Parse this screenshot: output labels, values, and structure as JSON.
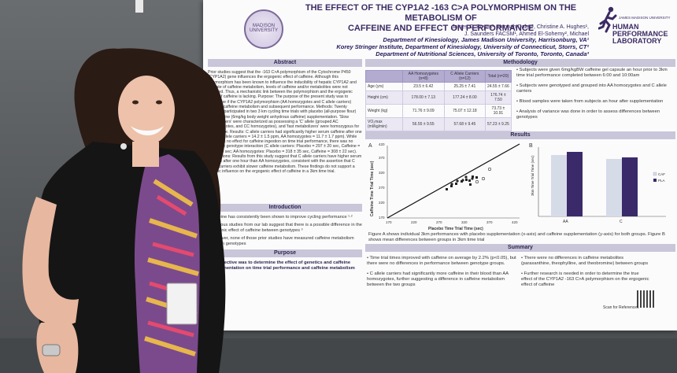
{
  "poster": {
    "title_line1": "THE EFFECT OF THE CYP1A2 -163 C>A POLYMORPHISM ON THE METABOLISM OF",
    "title_line2": "CAFFEINE AND EFFECT ON PERFORMANCE",
    "authors_line1": "James C. Boyett¹, Hannah Daley¹, Christine A. Hughes¹,",
    "authors_line2": "J. Saunders FACSM¹, Ahmed El-Sohemy², Michael",
    "affil_1": "Department of Kinesiology, James Madison University, Harrisonburg, VA¹",
    "affil_2": "Korey Stringer Institute, Department of Kinesiology, University of Connecticut, Storrs, CT²",
    "affil_3": "Department of Nutritional Sciences, University of Toronto, Toronto, Canada³",
    "seal_text": "MADISON UNIVERSITY",
    "logo_line1": "JAMES MADISON UNIVERSITY",
    "logo_line2": "HUMAN",
    "logo_line3": "PERFORMANCE",
    "logo_line4": "LABORATORY"
  },
  "sections": {
    "abstract": "Abstract",
    "introduction": "Introduction",
    "purpose": "Purpose",
    "methodology": "Methodology",
    "results": "Results",
    "summary": "Summary"
  },
  "abstract_text": "Prior studies suggest that the -163 C>A polymorphism of the Cytochrome P450 (CYP1A2) gene influences the ergogenic effect of caffeine. Although this polymorphism has been known to influence the inducibility of hepatic CYP1A2 and the rate of caffeine metabolism, levels of caffeine and/or metabolites were not reported. Thus, a mechanistic link between the polymorphism and the ergogenic effect of caffeine is lacking. Purpose: The purpose of the present study was to determine if the CYP1A2 polymorphism (AA homozygotes and C allele carriers) affected caffeine metabolism and subsequent performance. Methods: Twenty subjects participated in two 3 km cycling time trials with placebo (all-purpose flour) and caffeine (6mg/kg body weight anhydrous caffeine) supplementation. 'Slow metabolizers' were characterized as possessing a 'C' allele (grouped AC heterozygotes, and CC homozygotes), and 'fast metabolizers' were homozygous for the A allele. Results: C allele carriers had significantly higher serum caffeine after one hour (C allele carriers = 14.2 ± 1.5 ppm, AA homozygotes = 11.7 ± 1.7 ppm). While there was no effect for caffeine ingestion on time trial performance, there was no caffeine x genotype interaction (C allele carriers: Placebo = 297 ± 20 sec, Caffeine = 292 ± 20 sec; AA homozygotes: Placebo = 318 ± 35 sec, Caffeine = 308 ± 22 sec). Conclusions: Results from this study suggest that C allele carriers have higher serum caffeine after one hour than AA homozygotes, consistent with the assertion that C allele carriers exhibit slower caffeine metabolism. These findings do not support a genetic influence on the ergogenic effect of caffeine in a 3km time trial.",
  "introduction": [
    "Caffeine has consistently been shown to improve cycling performance ¹·²",
    "Previous studies from our lab suggest that there is a possible difference in the ergogenic effect of caffeine between genotypes ³",
    "However, none of those prior studies have measured caffeine metabolism between genotypes"
  ],
  "objective": "The objective was to determine the effect of genetics and caffeine supplementation on time trial performance and caffeine metabolism",
  "methods_table": {
    "headers": [
      "",
      "AA Homozygotes (n=8)",
      "C Allele Carriers (n=12)",
      "Total (n=20)"
    ],
    "rows": [
      [
        "Age (yrs)",
        "23.5 ± 6.42",
        "25.25 ± 7.41",
        "24.55 ± 7.66"
      ],
      [
        "Height (cm)",
        "178.00 ± 7.13",
        "177.24 ± 8.00",
        "176.74 ± 7.50"
      ],
      [
        "Weight (kg)",
        "71.76 ± 9.09",
        "75.07 ± 12.18",
        "73.73 ± 10.91"
      ],
      [
        "VO₂max (ml/kg/min)",
        "56.55 ± 9.55",
        "57.68 ± 9.45",
        "57.23 ± 9.25"
      ]
    ]
  },
  "methods_bullets": [
    "Subjects were given 6mg/kgBW caffeine gel capsule an hour prior to 3km time trial performance completed between 6:00 and 10:00am",
    "Subjects were genotyped and grouped into AA homozygotes and C allele carriers",
    "Blood samples were taken from subjects an hour after supplementation",
    "Analysis of variance was done in order to assess differences between genotypes"
  ],
  "figure_a": {
    "label": "A",
    "xlabel": "Placebo Time Trial Time (sec)",
    "ylabel": "Caffeine Time Trial Time (sec)",
    "x_ticks": [
      "170",
      "220",
      "270",
      "320",
      "370",
      "420"
    ],
    "y_ticks": [
      "170",
      "220",
      "270",
      "320",
      "370",
      "420"
    ]
  },
  "figure_b": {
    "label": "B",
    "ylabel": "3km Time Trial Time (sec)",
    "categories": [
      "AA",
      "C"
    ],
    "legend": [
      "CAF",
      "PLA"
    ]
  },
  "figure_caption": "Figure A shows individual 3km performances with placebo supplementation (x-axis) and caffeine supplementation (y-axis) for both groups. Figure B shows mean differences between groups in 3km time trial",
  "summary_left": [
    "Time trial times improved with caffeine on average by 2.2% (p<0.05), but there were no differences in performance between genotype groups.",
    "C allele carriers had significantly more caffeine in their blood than AA homozygotes, further suggesting a difference in caffeine metabolism between the two groups"
  ],
  "summary_right": [
    "There were no differences in caffeine metabolites (paraxanthine, theophylline, and theobromine) between groups",
    "Further research is needed in order to determine the true effect of the CYP1A2 -163 C>A polymorphism on the ergogenic effect of caffeine"
  ],
  "scan_text": "Scan for References",
  "colors": {
    "purple": "#3b2a63",
    "header_bg": "#c9c6da",
    "bar_caf": "#d6dbe8",
    "bar_pla": "#3a2a6a",
    "shirt_black": "#151515"
  }
}
